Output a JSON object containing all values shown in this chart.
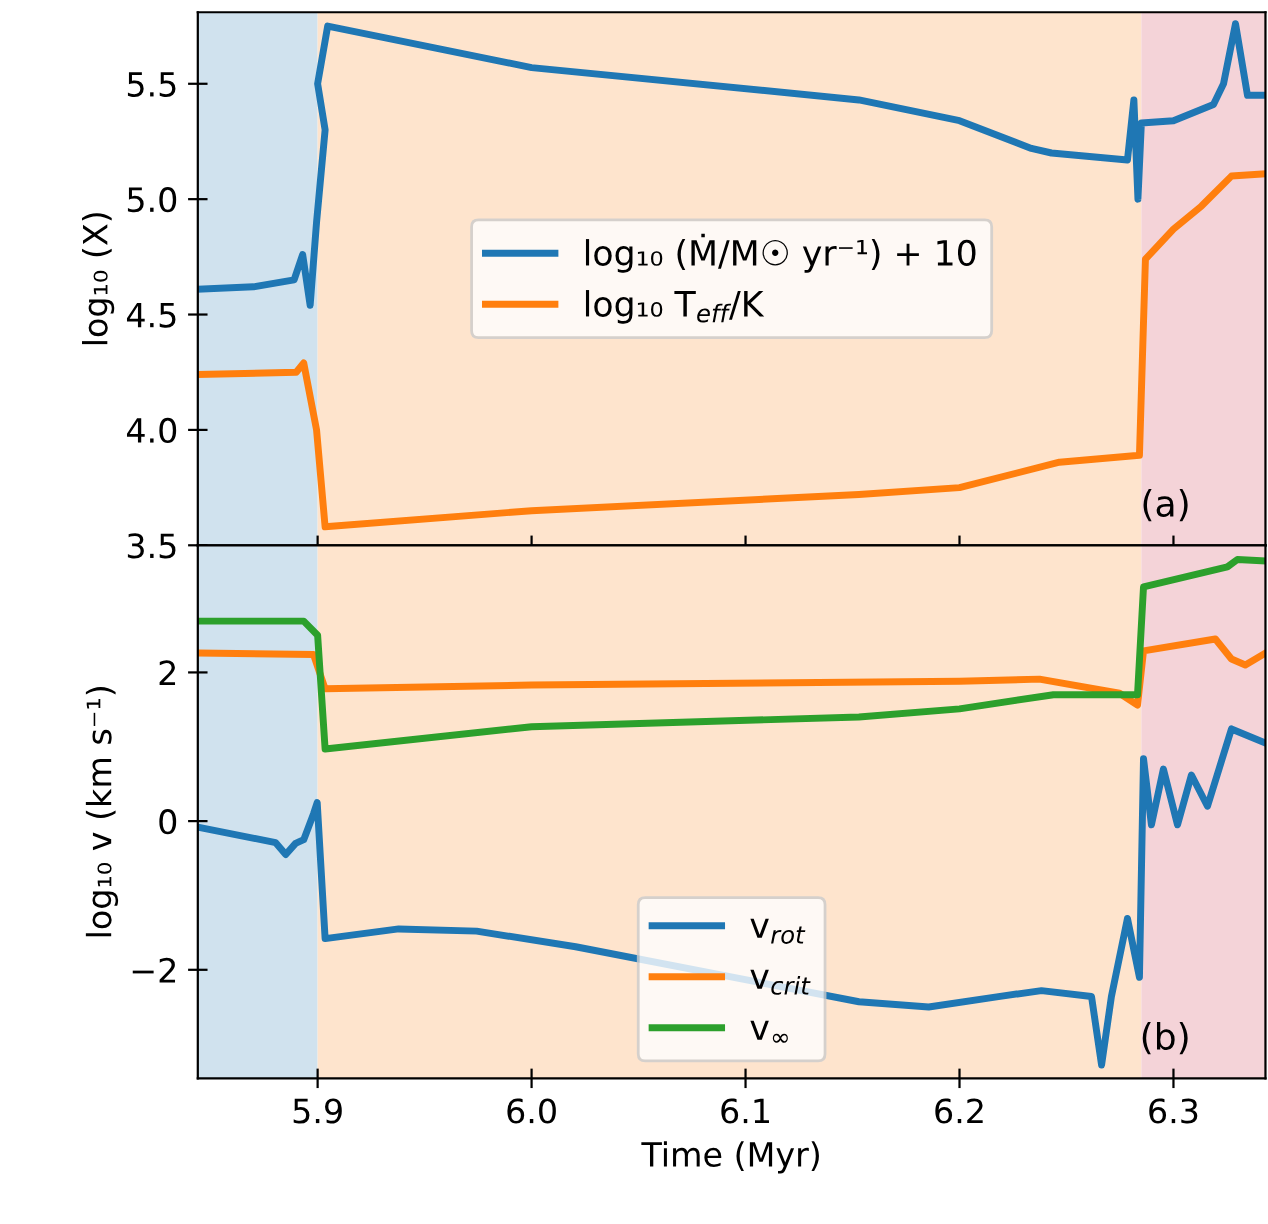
{
  "chart_data": [
    {
      "type": "line",
      "ylabel": "log₁₀ (X)",
      "xlim": [
        5.844,
        6.343
      ],
      "xticks": [
        5.9,
        6.0,
        6.1,
        6.2,
        6.3
      ],
      "ylim": [
        3.5,
        5.81
      ],
      "yticks": [
        3.5,
        {
          "value": 4,
          "label": "4.0"
        },
        4.5,
        {
          "value": 5,
          "label": "5.0"
        },
        5.5
      ],
      "tick_labels": "y",
      "legend": "center",
      "grid": false,
      "bands": [
        {
          "axis": "x",
          "from": 5.844,
          "to": 5.9,
          "color": "#d0e2ee"
        },
        {
          "axis": "x",
          "from": 5.9,
          "to": 6.285,
          "color": "#fee4cd"
        },
        {
          "axis": "x",
          "from": 6.285,
          "to": 6.343,
          "color": "#f4d3d8"
        }
      ],
      "annotations": [
        "(a)"
      ],
      "series": [
        {
          "name": "log₁₀ (Ṁ/M☉ yr⁻¹) + 10",
          "color": "#1f77b4",
          "x": [
            5.844,
            5.87,
            5.889,
            5.893,
            5.8965,
            5.8995,
            5.9035,
            5.9,
            5.9047,
            6.0,
            6.153,
            6.2,
            6.2336,
            6.243,
            6.2785,
            6.2815,
            6.2834,
            6.285,
            6.3,
            6.3187,
            6.3234,
            6.329,
            6.3346,
            6.343
          ],
          "values": [
            4.61,
            4.62,
            4.65,
            4.76,
            4.54,
            4.9,
            5.3,
            5.5,
            5.75,
            5.57,
            5.43,
            5.34,
            5.22,
            5.2,
            5.17,
            5.43,
            5.0,
            5.33,
            5.34,
            5.41,
            5.5,
            5.76,
            5.45,
            5.45
          ]
        },
        {
          "name": "log₁₀ T$_{eff}$/K",
          "color": "#ff7f0e",
          "x": [
            5.844,
            5.89,
            5.8935,
            5.8995,
            5.9035,
            6.0,
            6.153,
            6.2,
            6.2467,
            6.2841,
            6.2869,
            6.3,
            6.3131,
            6.3271,
            6.343
          ],
          "values": [
            4.24,
            4.25,
            4.29,
            4.0,
            3.58,
            3.65,
            3.72,
            3.75,
            3.86,
            3.89,
            4.74,
            4.87,
            4.97,
            5.1,
            5.11
          ]
        }
      ]
    },
    {
      "type": "line",
      "xlabel": "Time (Myr)",
      "ylabel": "log₁₀ v (km s⁻¹)",
      "xlim": [
        5.844,
        6.343
      ],
      "xticks": [
        5.9,
        {
          "value": 6,
          "label": "6.0"
        },
        6.1,
        6.2,
        6.3
      ],
      "ylim": [
        -3.46,
        3.71
      ],
      "yticks": [
        {
          "value": -2,
          "label": "−2"
        },
        0,
        2
      ],
      "legend": "bottom",
      "grid": false,
      "bands": [
        {
          "axis": "x",
          "from": 5.844,
          "to": 5.9,
          "color": "#d0e2ee"
        },
        {
          "axis": "x",
          "from": 5.9,
          "to": 6.285,
          "color": "#fee4cd"
        },
        {
          "axis": "x",
          "from": 6.285,
          "to": 6.343,
          "color": "#f4d3d8"
        }
      ],
      "annotations": [
        "(b)"
      ],
      "series": [
        {
          "name": "v$_{rot}$",
          "color": "#1f77b4",
          "x": [
            5.844,
            5.8804,
            5.8851,
            5.8897,
            5.8935,
            5.8981,
            5.8998,
            5.9035,
            5.9379,
            5.9743,
            6.0206,
            6.153,
            6.1856,
            6.2182,
            6.2383,
            6.2617,
            6.2664,
            6.271,
            6.2785,
            6.2841,
            6.286,
            6.2897,
            6.2953,
            6.3019,
            6.3084,
            6.3159,
            6.3271,
            6.343
          ],
          "values": [
            -0.08,
            -0.29,
            -0.45,
            -0.3,
            -0.25,
            0.1,
            0.25,
            -1.58,
            -1.45,
            -1.48,
            -1.69,
            -2.43,
            -2.5,
            -2.36,
            -2.28,
            -2.36,
            -3.28,
            -2.36,
            -1.31,
            -2.1,
            0.84,
            -0.05,
            0.7,
            -0.05,
            0.62,
            0.2,
            1.24,
            1.05
          ]
        },
        {
          "name": "v$_{crit}$",
          "color": "#ff7f0e",
          "x": [
            5.844,
            5.8981,
            5.9035,
            6.0,
            6.2,
            6.2374,
            6.2748,
            6.2832,
            6.286,
            6.3196,
            6.3271,
            6.3336,
            6.343
          ],
          "values": [
            2.26,
            2.24,
            1.78,
            1.83,
            1.88,
            1.91,
            1.72,
            1.56,
            2.29,
            2.45,
            2.18,
            2.1,
            2.26
          ]
        },
        {
          "name": "v$_{∞}$",
          "color": "#2ca02c",
          "x": [
            5.844,
            5.8935,
            5.9,
            5.9035,
            6.0,
            6.153,
            6.2,
            6.2439,
            6.2832,
            6.286,
            6.3252,
            6.3299,
            6.343
          ],
          "values": [
            2.69,
            2.69,
            2.5,
            0.97,
            1.27,
            1.4,
            1.51,
            1.7,
            1.7,
            3.15,
            3.42,
            3.52,
            3.5
          ]
        }
      ]
    }
  ]
}
